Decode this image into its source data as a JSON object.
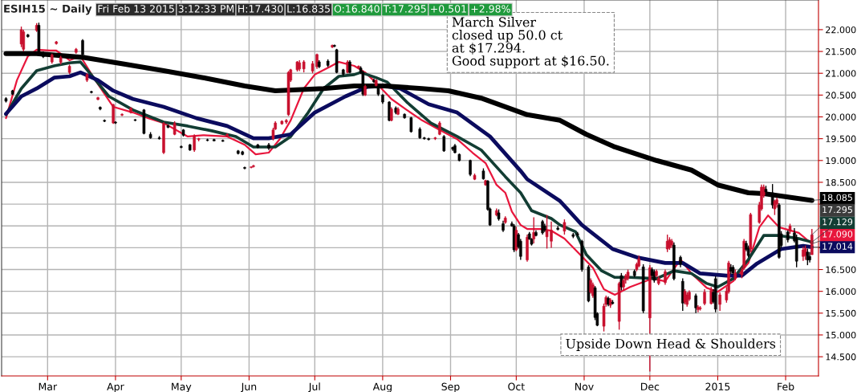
{
  "chart_data": {
    "type": "candlestick",
    "title": "ESIH15 ~ Daily",
    "x": [
      "2014-02-10",
      "2014-02-13",
      "2014-02-17",
      "2014-02-18",
      "2014-02-20",
      "2014-02-24",
      "2014-02-25",
      "2014-02-27",
      "2014-03-03",
      "2014-03-05",
      "2014-03-07",
      "2014-03-11",
      "2014-03-14",
      "2014-03-17",
      "2014-03-19",
      "2014-03-21",
      "2014-03-24",
      "2014-03-25",
      "2014-03-27",
      "2014-03-31",
      "2014-04-01",
      "2014-04-04",
      "2014-04-08",
      "2014-04-10",
      "2014-04-14",
      "2014-04-17",
      "2014-04-21",
      "2014-04-23",
      "2014-04-25",
      "2014-04-28",
      "2014-05-01",
      "2014-05-02",
      "2014-05-05",
      "2014-05-07",
      "2014-05-09",
      "2014-05-13",
      "2014-05-16",
      "2014-05-20",
      "2014-05-22",
      "2014-05-27",
      "2014-05-29",
      "2014-05-30",
      "2014-06-02",
      "2014-06-03",
      "2014-06-05",
      "2014-06-10",
      "2014-06-12",
      "2014-06-13",
      "2014-06-16",
      "2014-06-18",
      "2014-06-19",
      "2014-06-20",
      "2014-06-23",
      "2014-06-24",
      "2014-06-26",
      "2014-06-30",
      "2014-07-02",
      "2014-07-03",
      "2014-07-07",
      "2014-07-09",
      "2014-07-10",
      "2014-07-11",
      "2014-07-14",
      "2014-07-16",
      "2014-07-17",
      "2014-07-21",
      "2014-07-22",
      "2014-07-23",
      "2014-07-24",
      "2014-07-28",
      "2014-07-29",
      "2014-07-30",
      "2014-08-01",
      "2014-08-04",
      "2014-08-05",
      "2014-08-07",
      "2014-08-08",
      "2014-08-11",
      "2014-08-14",
      "2014-08-18",
      "2014-08-20",
      "2014-08-22",
      "2014-08-25",
      "2014-08-27",
      "2014-08-29",
      "2014-09-02",
      "2014-09-03",
      "2014-09-05",
      "2014-09-10",
      "2014-09-12",
      "2014-09-16",
      "2014-09-17",
      "2014-09-18",
      "2014-09-19",
      "2014-09-22",
      "2014-09-23",
      "2014-09-25",
      "2014-09-26",
      "2014-09-29",
      "2014-09-30",
      "2014-10-01",
      "2014-10-02",
      "2014-10-03",
      "2014-10-06",
      "2014-10-07",
      "2014-10-08",
      "2014-10-09",
      "2014-10-10",
      "2014-10-13",
      "2014-10-14",
      "2014-10-15",
      "2014-10-17",
      "2014-10-20",
      "2014-10-23",
      "2014-10-27",
      "2014-10-29",
      "2014-10-31",
      "2014-11-03",
      "2014-11-04",
      "2014-11-05",
      "2014-11-06",
      "2014-11-07",
      "2014-11-10",
      "2014-11-11",
      "2014-11-12",
      "2014-11-13",
      "2014-11-14",
      "2014-11-17",
      "2014-11-18",
      "2014-11-19",
      "2014-11-20",
      "2014-11-21",
      "2014-11-24",
      "2014-11-25",
      "2014-11-26",
      "2014-11-28",
      "2014-12-01",
      "2014-12-02",
      "2014-12-03",
      "2014-12-04",
      "2014-12-05",
      "2014-12-08",
      "2014-12-09",
      "2014-12-10",
      "2014-12-11",
      "2014-12-12",
      "2014-12-15",
      "2014-12-16",
      "2014-12-17",
      "2014-12-18",
      "2014-12-19",
      "2014-12-22",
      "2014-12-23",
      "2014-12-24",
      "2014-12-26",
      "2014-12-29",
      "2014-12-30",
      "2014-12-31",
      "2015-01-02",
      "2015-01-05",
      "2015-01-06",
      "2015-01-07",
      "2015-01-08",
      "2015-01-09",
      "2015-01-12",
      "2015-01-13",
      "2015-01-14",
      "2015-01-15",
      "2015-01-16",
      "2015-01-20",
      "2015-01-21",
      "2015-01-22",
      "2015-01-23",
      "2015-01-26",
      "2015-01-27",
      "2015-01-28",
      "2015-01-29",
      "2015-01-30",
      "2015-02-02",
      "2015-02-03",
      "2015-02-05",
      "2015-02-06",
      "2015-02-09",
      "2015-02-10",
      "2015-02-11",
      "2015-02-12",
      "2015-02-13"
    ],
    "ohlc": [
      [
        20.42,
        20.45,
        20.33,
        20.36
      ],
      [
        20.6,
        20.62,
        20.5,
        20.52
      ],
      [
        21.67,
        22.07,
        21.6,
        22.0
      ],
      [
        21.55,
        22.0,
        21.5,
        21.95
      ],
      [
        21.88,
        21.9,
        21.82,
        21.84
      ],
      [
        21.98,
        22.15,
        21.95,
        22.1
      ],
      [
        22.1,
        22.16,
        21.4,
        21.45
      ],
      [
        21.45,
        21.5,
        21.35,
        21.38
      ],
      [
        21.26,
        21.45,
        21.22,
        21.42
      ],
      [
        21.68,
        21.74,
        21.66,
        21.72
      ],
      [
        21.25,
        21.4,
        21.2,
        21.36
      ],
      [
        21.02,
        21.2,
        20.98,
        21.16
      ],
      [
        21.48,
        21.58,
        21.45,
        21.55
      ],
      [
        21.75,
        21.78,
        21.4,
        21.43
      ],
      [
        20.84,
        21.0,
        20.8,
        20.97
      ],
      [
        20.58,
        20.6,
        20.54,
        20.56
      ],
      [
        20.4,
        20.46,
        20.38,
        20.44
      ],
      [
        20.22,
        20.24,
        20.15,
        20.18
      ],
      [
        19.92,
        19.94,
        19.88,
        19.9
      ],
      [
        19.86,
        20.3,
        19.84,
        20.28
      ],
      [
        19.88,
        19.9,
        19.84,
        19.86
      ],
      [
        20.04,
        20.08,
        20.02,
        20.06
      ],
      [
        20.1,
        20.22,
        20.08,
        20.2
      ],
      [
        19.93,
        19.95,
        19.9,
        19.92
      ],
      [
        20.16,
        20.18,
        19.6,
        19.62
      ],
      [
        19.6,
        19.65,
        19.5,
        19.52
      ],
      [
        19.52,
        19.56,
        19.48,
        19.5
      ],
      [
        19.18,
        19.88,
        19.15,
        19.85
      ],
      [
        19.8,
        19.82,
        19.74,
        19.76
      ],
      [
        19.6,
        19.9,
        19.58,
        19.85
      ],
      [
        19.32,
        19.34,
        19.28,
        19.3
      ],
      [
        19.7,
        19.72,
        19.55,
        19.58
      ],
      [
        19.36,
        19.38,
        19.22,
        19.24
      ],
      [
        19.24,
        19.6,
        19.2,
        19.56
      ],
      [
        19.48,
        19.52,
        19.44,
        19.5
      ],
      [
        19.47,
        19.5,
        19.44,
        19.46
      ],
      [
        19.48,
        19.5,
        19.44,
        19.45
      ],
      [
        19.46,
        19.48,
        19.43,
        19.44
      ],
      [
        19.55,
        19.62,
        19.53,
        19.6
      ],
      [
        19.22,
        19.24,
        19.14,
        19.16
      ],
      [
        19.2,
        19.22,
        19.12,
        19.14
      ],
      [
        18.84,
        18.86,
        18.8,
        18.82
      ],
      [
        18.84,
        18.86,
        18.82,
        18.85
      ],
      [
        18.86,
        18.9,
        18.84,
        18.88
      ],
      [
        19.36,
        19.38,
        19.28,
        19.3
      ],
      [
        19.36,
        19.4,
        19.24,
        19.28
      ],
      [
        19.5,
        19.75,
        19.46,
        19.7
      ],
      [
        19.72,
        19.9,
        19.7,
        19.86
      ],
      [
        19.84,
        19.92,
        19.82,
        19.9
      ],
      [
        19.88,
        19.95,
        19.84,
        19.92
      ],
      [
        20.05,
        21.05,
        20.02,
        21.02
      ],
      [
        20.84,
        21.1,
        20.8,
        21.08
      ],
      [
        21.08,
        21.28,
        21.04,
        21.26
      ],
      [
        21.1,
        21.3,
        21.05,
        21.24
      ],
      [
        21.1,
        21.3,
        21.02,
        21.26
      ],
      [
        21.05,
        21.28,
        21.0,
        21.22
      ],
      [
        21.15,
        21.45,
        21.1,
        21.43
      ],
      [
        21.26,
        21.3,
        21.12,
        21.15
      ],
      [
        21.28,
        21.32,
        21.14,
        21.18
      ],
      [
        21.6,
        21.66,
        21.58,
        21.64
      ],
      [
        21.64,
        21.66,
        21.6,
        21.62
      ],
      [
        21.54,
        21.56,
        21.0,
        21.02
      ],
      [
        21.08,
        21.1,
        20.94,
        20.98
      ],
      [
        21.02,
        21.3,
        21.0,
        21.26
      ],
      [
        21.26,
        21.3,
        21.0,
        21.02
      ],
      [
        21.12,
        21.18,
        21.1,
        21.16
      ],
      [
        21.12,
        21.16,
        20.98,
        21.02
      ],
      [
        21.02,
        21.06,
        20.48,
        20.52
      ],
      [
        20.5,
        20.74,
        20.48,
        20.7
      ],
      [
        20.84,
        20.88,
        20.78,
        20.8
      ],
      [
        20.72,
        20.86,
        20.7,
        20.84
      ],
      [
        20.7,
        20.74,
        20.48,
        20.52
      ],
      [
        20.5,
        20.52,
        20.3,
        20.34
      ],
      [
        20.34,
        20.36,
        19.9,
        19.92
      ],
      [
        19.92,
        20.22,
        19.9,
        20.18
      ],
      [
        20.2,
        20.24,
        20.06,
        20.1
      ],
      [
        20.06,
        20.22,
        20.04,
        20.18
      ],
      [
        20.06,
        20.08,
        19.96,
        19.98
      ],
      [
        19.98,
        20.0,
        19.64,
        19.66
      ],
      [
        19.72,
        19.76,
        19.5,
        19.52
      ],
      [
        19.52,
        19.54,
        19.48,
        19.5
      ],
      [
        19.5,
        19.52,
        19.46,
        19.48
      ],
      [
        19.5,
        19.54,
        19.47,
        19.52
      ],
      [
        19.6,
        19.9,
        19.58,
        19.86
      ],
      [
        19.55,
        19.58,
        19.2,
        19.22
      ],
      [
        19.3,
        19.32,
        19.22,
        19.26
      ],
      [
        19.34,
        19.38,
        19.16,
        19.18
      ],
      [
        19.14,
        19.16,
        18.98,
        19.0
      ],
      [
        19.0,
        19.02,
        18.64,
        18.68
      ],
      [
        18.57,
        18.7,
        18.55,
        18.66
      ],
      [
        18.76,
        18.82,
        18.56,
        18.58
      ],
      [
        18.44,
        18.56,
        18.42,
        18.54
      ],
      [
        18.53,
        18.55,
        17.85,
        17.88
      ],
      [
        17.89,
        17.92,
        17.5,
        17.52
      ],
      [
        17.75,
        17.9,
        17.72,
        17.85
      ],
      [
        17.8,
        17.88,
        17.62,
        17.66
      ],
      [
        17.55,
        17.62,
        17.36,
        17.4
      ],
      [
        17.58,
        17.72,
        17.55,
        17.68
      ],
      [
        17.55,
        17.6,
        17.48,
        17.5
      ],
      [
        17.5,
        17.54,
        16.9,
        16.95
      ],
      [
        16.95,
        17.48,
        16.92,
        17.4
      ],
      [
        17.3,
        17.34,
        16.98,
        17.02
      ],
      [
        17.15,
        17.2,
        16.72,
        16.8
      ],
      [
        16.72,
        17.3,
        16.68,
        17.24
      ],
      [
        17.32,
        17.36,
        17.18,
        17.2
      ],
      [
        17.2,
        17.22,
        17.05,
        17.08
      ],
      [
        17.2,
        17.7,
        17.1,
        17.35
      ],
      [
        17.35,
        17.4,
        17.26,
        17.28
      ],
      [
        17.6,
        17.64,
        17.3,
        17.34
      ],
      [
        17.5,
        17.55,
        17.36,
        17.4
      ],
      [
        17.25,
        17.75,
        16.98,
        17.4
      ],
      [
        17.15,
        17.6,
        17.0,
        17.4
      ],
      [
        17.45,
        17.5,
        17.4,
        17.42
      ],
      [
        17.38,
        17.65,
        17.3,
        17.58
      ],
      [
        17.3,
        17.34,
        17.22,
        17.26
      ],
      [
        17.32,
        17.36,
        17.26,
        17.3
      ],
      [
        17.15,
        17.18,
        16.45,
        16.5
      ],
      [
        16.56,
        16.6,
        15.75,
        15.78
      ],
      [
        15.98,
        16.3,
        15.95,
        16.25
      ],
      [
        15.9,
        16.2,
        15.85,
        16.15
      ],
      [
        16.08,
        16.12,
        15.34,
        15.4
      ],
      [
        15.49,
        15.52,
        15.2,
        15.22
      ],
      [
        15.2,
        15.72,
        15.08,
        15.66
      ],
      [
        15.7,
        15.9,
        15.65,
        15.86
      ],
      [
        15.84,
        15.88,
        15.66,
        15.7
      ],
      [
        15.68,
        15.84,
        15.62,
        15.8
      ],
      [
        15.75,
        15.8,
        15.7,
        15.72
      ],
      [
        15.31,
        16.22,
        15.12,
        16.18
      ],
      [
        16.36,
        16.42,
        16.02,
        16.1
      ],
      [
        16.1,
        16.3,
        16.02,
        16.25
      ],
      [
        16.26,
        16.4,
        16.18,
        16.36
      ],
      [
        16.3,
        16.5,
        16.25,
        16.44
      ],
      [
        16.46,
        16.5,
        16.32,
        16.36
      ],
      [
        16.5,
        16.66,
        16.46,
        16.62
      ],
      [
        16.58,
        16.82,
        16.55,
        16.75
      ],
      [
        16.56,
        16.62,
        15.5,
        15.55
      ],
      [
        15.39,
        16.6,
        14.16,
        16.54
      ],
      [
        16.5,
        16.55,
        16.3,
        16.36
      ],
      [
        16.45,
        16.5,
        16.2,
        16.25
      ],
      [
        16.36,
        16.5,
        16.32,
        16.46
      ],
      [
        16.18,
        16.35,
        16.14,
        16.3
      ],
      [
        16.2,
        16.5,
        16.15,
        16.45
      ],
      [
        16.97,
        17.3,
        16.9,
        17.15
      ],
      [
        17.0,
        17.24,
        16.95,
        17.18
      ],
      [
        17.06,
        17.2,
        17.0,
        17.15
      ],
      [
        17.06,
        17.12,
        16.25,
        16.29
      ],
      [
        16.78,
        16.82,
        16.55,
        16.62
      ],
      [
        16.23,
        16.3,
        15.55,
        15.73
      ],
      [
        15.75,
        16.05,
        15.7,
        16.0
      ],
      [
        15.7,
        15.98,
        15.65,
        15.92
      ],
      [
        15.82,
        16.02,
        15.78,
        15.98
      ],
      [
        15.9,
        15.95,
        15.5,
        15.62
      ],
      [
        15.58,
        15.68,
        15.52,
        15.64
      ],
      [
        15.6,
        15.66,
        15.56,
        15.62
      ],
      [
        15.72,
        16.05,
        15.68,
        15.98
      ],
      [
        15.72,
        16.1,
        15.7,
        16.02
      ],
      [
        15.98,
        16.05,
        15.72,
        15.76
      ],
      [
        16.29,
        16.35,
        15.52,
        15.59
      ],
      [
        15.7,
        15.98,
        15.55,
        15.92
      ],
      [
        15.8,
        16.1,
        15.74,
        16.0
      ],
      [
        15.99,
        16.7,
        15.95,
        16.65
      ],
      [
        16.55,
        16.62,
        16.4,
        16.46
      ],
      [
        16.55,
        16.6,
        16.38,
        16.42
      ],
      [
        16.3,
        16.5,
        16.25,
        16.42
      ],
      [
        16.38,
        16.55,
        16.3,
        16.48
      ],
      [
        16.54,
        17.2,
        16.5,
        17.15
      ],
      [
        17.1,
        17.16,
        16.92,
        16.96
      ],
      [
        17.0,
        17.05,
        16.78,
        16.82
      ],
      [
        16.97,
        17.8,
        16.9,
        17.76
      ],
      [
        17.58,
        18.05,
        17.55,
        17.98
      ],
      [
        17.89,
        18.45,
        17.85,
        18.39
      ],
      [
        18.2,
        18.45,
        18.15,
        18.39
      ],
      [
        18.34,
        18.42,
        18.2,
        18.28
      ],
      [
        18.26,
        18.46,
        17.9,
        17.98
      ],
      [
        17.89,
        18.1,
        17.75,
        18.07
      ],
      [
        18.0,
        18.15,
        17.92,
        18.1
      ],
      [
        17.98,
        18.02,
        16.75,
        16.78
      ],
      [
        17.32,
        17.38,
        17.0,
        17.05
      ],
      [
        17.36,
        17.4,
        17.12,
        17.18
      ],
      [
        17.38,
        17.55,
        17.32,
        17.5
      ],
      [
        17.34,
        17.45,
        17.12,
        17.16
      ],
      [
        17.21,
        17.3,
        16.55,
        16.69
      ],
      [
        16.8,
        17.02,
        16.7,
        16.95
      ],
      [
        16.82,
        17.05,
        16.72,
        16.98
      ],
      [
        16.9,
        16.98,
        16.6,
        16.72
      ],
      [
        16.8,
        16.9,
        16.66,
        16.72
      ],
      [
        16.84,
        17.43,
        16.835,
        17.295
      ]
    ],
    "colors": [
      "#000000",
      "#000000",
      "#c8102e",
      "#c8102e",
      "#000000",
      "#c8102e",
      "#000000",
      "#000000",
      "#c8102e",
      "#c8102e",
      "#c8102e",
      "#c8102e",
      "#c8102e",
      "#000000",
      "#c8102e",
      "#000000",
      "#c8102e",
      "#000000",
      "#000000",
      "#c8102e",
      "#000000",
      "#c8102e",
      "#c8102e",
      "#000000",
      "#000000",
      "#000000",
      "#000000",
      "#c8102e",
      "#000000",
      "#c8102e",
      "#000000",
      "#000000",
      "#000000",
      "#c8102e",
      "#c8102e",
      "#000000",
      "#000000",
      "#000000",
      "#c8102e",
      "#000000",
      "#000000",
      "#000000",
      "#c8102e",
      "#c8102e",
      "#000000",
      "#000000",
      "#c8102e",
      "#c8102e",
      "#c8102e",
      "#c8102e",
      "#c8102e",
      "#c8102e",
      "#c8102e",
      "#c8102e",
      "#c8102e",
      "#c8102e",
      "#c8102e",
      "#000000",
      "#000000",
      "#c8102e",
      "#000000",
      "#000000",
      "#000000",
      "#c8102e",
      "#000000",
      "#c8102e",
      "#000000",
      "#000000",
      "#c8102e",
      "#000000",
      "#c8102e",
      "#000000",
      "#000000",
      "#000000",
      "#c8102e",
      "#000000",
      "#c8102e",
      "#000000",
      "#000000",
      "#000000",
      "#000000",
      "#000000",
      "#c8102e",
      "#c8102e",
      "#000000",
      "#000000",
      "#000000",
      "#000000",
      "#000000",
      "#c8102e",
      "#000000",
      "#c8102e",
      "#000000",
      "#000000",
      "#c8102e",
      "#000000",
      "#000000",
      "#c8102e",
      "#000000",
      "#000000",
      "#c8102e",
      "#000000",
      "#000000",
      "#c8102e",
      "#000000",
      "#000000",
      "#c8102e",
      "#000000",
      "#000000",
      "#000000",
      "#c8102e",
      "#c8102e",
      "#000000",
      "#c8102e",
      "#000000",
      "#000000",
      "#000000",
      "#000000",
      "#c8102e",
      "#c8102e",
      "#000000",
      "#000000",
      "#c8102e",
      "#c8102e",
      "#000000",
      "#c8102e",
      "#000000",
      "#c8102e",
      "#000000",
      "#c8102e",
      "#c8102e",
      "#c8102e",
      "#000000",
      "#c8102e",
      "#c8102e",
      "#000000",
      "#c8102e",
      "#000000",
      "#000000",
      "#c8102e",
      "#c8102e",
      "#c8102e",
      "#c8102e",
      "#c8102e",
      "#c8102e",
      "#000000",
      "#000000",
      "#000000",
      "#c8102e",
      "#c8102e",
      "#c8102e",
      "#000000",
      "#c8102e",
      "#c8102e",
      "#c8102e",
      "#c8102e",
      "#000000",
      "#000000",
      "#c8102e",
      "#c8102e",
      "#c8102e",
      "#000000",
      "#000000",
      "#c8102e",
      "#c8102e",
      "#c8102e",
      "#000000",
      "#000000",
      "#c8102e",
      "#c8102e",
      "#c8102e",
      "#c8102e",
      "#000000",
      "#000000",
      "#c8102e",
      "#c8102e",
      "#000000",
      "#000000",
      "#000000",
      "#c8102e",
      "#000000",
      "#000000",
      "#c8102e",
      "#c8102e",
      "#000000",
      "#000000",
      "#c8102e"
    ],
    "series": [
      {
        "type": "line",
        "color": "#e8163c",
        "x": [
          "2014-02-10",
          "2014-02-15",
          "2014-02-20",
          "2014-02-24",
          "2014-03-02",
          "2014-03-05",
          "2014-03-11",
          "2014-03-16",
          "2014-03-22",
          "2014-03-31",
          "2014-04-09",
          "2014-04-16",
          "2014-04-23",
          "2014-05-04",
          "2014-05-11",
          "2014-05-22",
          "2014-05-30",
          "2014-06-04",
          "2014-06-10",
          "2014-06-15",
          "2014-06-20",
          "2014-06-26",
          "2014-07-01",
          "2014-07-08",
          "2014-07-12",
          "2014-07-19",
          "2014-07-24",
          "2014-07-29",
          "2014-08-05",
          "2014-08-12",
          "2014-08-19",
          "2014-08-26",
          "2014-09-04",
          "2014-09-11",
          "2014-09-17",
          "2014-09-22",
          "2014-09-26",
          "2014-09-29",
          "2014-10-03",
          "2014-10-06",
          "2014-10-12",
          "2014-10-17",
          "2014-10-23",
          "2014-10-29",
          "2014-11-05",
          "2014-11-10",
          "2014-11-15",
          "2014-11-22",
          "2014-12-02",
          "2014-12-08",
          "2014-12-15",
          "2014-12-20",
          "2014-12-27",
          "2015-01-01",
          "2015-01-08",
          "2015-01-15",
          "2015-01-20",
          "2015-01-24",
          "2015-01-29",
          "2015-02-07",
          "2015-02-13"
        ],
        "values": [
          19.97,
          20.84,
          21.39,
          21.54,
          21.52,
          21.52,
          21.3,
          21.39,
          20.9,
          20.23,
          20.1,
          19.97,
          19.86,
          19.55,
          19.58,
          19.55,
          19.36,
          19.14,
          19.18,
          19.49,
          19.92,
          20.65,
          20.97,
          21.15,
          21.26,
          21.17,
          21.02,
          20.78,
          20.41,
          20.16,
          19.92,
          19.73,
          19.49,
          19.18,
          18.94,
          18.44,
          18.26,
          17.83,
          17.52,
          17.43,
          17.43,
          17.39,
          17.21,
          16.9,
          16.54,
          16.05,
          15.92,
          16.1,
          16.29,
          16.23,
          16.73,
          16.41,
          16.08,
          15.99,
          16.23,
          16.65,
          17.47,
          17.74,
          17.47,
          17.34,
          17.09
        ],
        "value_labels": [
          null,
          null,
          null,
          null,
          null,
          null,
          null,
          null,
          null,
          null,
          null,
          null,
          null,
          null,
          null,
          null,
          null,
          null,
          null,
          null,
          null,
          null,
          null,
          null,
          null,
          null,
          null,
          null,
          null,
          null,
          null,
          null,
          null,
          null,
          null,
          null,
          null,
          null,
          null,
          null,
          null,
          null,
          null,
          null,
          null,
          null,
          null,
          null,
          null,
          null,
          null,
          null,
          null,
          null,
          null,
          null,
          null,
          null,
          null,
          null,
          "17.090"
        ]
      },
      {
        "type": "line",
        "color": "#123d33",
        "x": [
          "2014-02-10",
          "2014-02-17",
          "2014-02-24",
          "2014-03-04",
          "2014-03-11",
          "2014-03-16",
          "2014-03-22",
          "2014-03-29",
          "2014-04-09",
          "2014-04-23",
          "2014-05-04",
          "2014-05-15",
          "2014-05-26",
          "2014-06-03",
          "2014-06-10",
          "2014-06-13",
          "2014-06-20",
          "2014-06-28",
          "2014-07-05",
          "2014-07-12",
          "2014-07-19",
          "2014-07-22",
          "2014-07-29",
          "2014-08-03",
          "2014-08-12",
          "2014-08-23",
          "2014-09-04",
          "2014-09-15",
          "2014-09-26",
          "2014-10-03",
          "2014-10-08",
          "2014-10-17",
          "2014-10-21",
          "2014-10-28",
          "2014-11-02",
          "2014-11-09",
          "2014-11-15",
          "2014-11-22",
          "2014-12-04",
          "2014-12-12",
          "2014-12-20",
          "2014-12-27",
          "2015-01-01",
          "2015-01-08",
          "2015-01-15",
          "2015-01-22",
          "2015-01-29",
          "2015-02-07",
          "2015-02-13"
        ],
        "values": [
          20.05,
          20.65,
          21.06,
          21.17,
          21.24,
          21.26,
          20.9,
          20.47,
          20.16,
          19.88,
          19.79,
          19.68,
          19.55,
          19.31,
          19.31,
          19.31,
          19.55,
          20.1,
          20.65,
          20.93,
          20.97,
          21.02,
          20.9,
          20.8,
          20.34,
          19.86,
          19.55,
          19.24,
          18.63,
          18.26,
          17.85,
          17.67,
          17.52,
          17.37,
          16.84,
          16.47,
          16.32,
          16.32,
          16.29,
          16.47,
          16.41,
          16.18,
          16.1,
          16.29,
          16.73,
          17.28,
          17.28,
          17.21,
          17.129
        ],
        "value_labels": [
          null,
          null,
          null,
          null,
          null,
          null,
          null,
          null,
          null,
          null,
          null,
          null,
          null,
          null,
          null,
          null,
          null,
          null,
          null,
          null,
          null,
          null,
          null,
          null,
          null,
          null,
          null,
          null,
          null,
          null,
          null,
          null,
          null,
          null,
          null,
          null,
          null,
          null,
          null,
          null,
          null,
          null,
          null,
          null,
          null,
          null,
          null,
          null,
          "17.129"
        ]
      },
      {
        "type": "line",
        "color": "#0b0b5e",
        "x": [
          "2014-02-10",
          "2014-02-17",
          "2014-02-24",
          "2014-03-04",
          "2014-03-11",
          "2014-03-16",
          "2014-03-24",
          "2014-03-31",
          "2014-04-09",
          "2014-04-23",
          "2014-05-08",
          "2014-05-22",
          "2014-06-03",
          "2014-06-10",
          "2014-06-20",
          "2014-07-01",
          "2014-07-15",
          "2014-07-25",
          "2014-08-02",
          "2014-08-09",
          "2014-08-22",
          "2014-09-04",
          "2014-09-19",
          "2014-10-03",
          "2014-10-06",
          "2014-10-21",
          "2014-10-31",
          "2014-11-14",
          "2014-11-25",
          "2014-12-08",
          "2014-12-16",
          "2014-12-24",
          "2015-01-05",
          "2015-01-12",
          "2015-01-19",
          "2015-01-30",
          "2015-02-09",
          "2015-02-13"
        ],
        "values": [
          20.07,
          20.47,
          20.65,
          20.9,
          20.93,
          21.02,
          20.84,
          20.6,
          20.41,
          20.23,
          19.97,
          19.79,
          19.51,
          19.51,
          19.6,
          20.1,
          20.47,
          20.69,
          20.71,
          20.65,
          20.29,
          20.1,
          19.55,
          18.76,
          18.57,
          18.07,
          17.52,
          16.97,
          16.78,
          16.65,
          16.65,
          16.41,
          16.36,
          16.36,
          16.64,
          16.97,
          17.04,
          17.014
        ],
        "value_labels": [
          null,
          null,
          null,
          null,
          null,
          null,
          null,
          null,
          null,
          null,
          null,
          null,
          null,
          null,
          null,
          null,
          null,
          null,
          null,
          null,
          null,
          null,
          null,
          null,
          null,
          null,
          null,
          null,
          null,
          null,
          null,
          null,
          null,
          null,
          null,
          null,
          null,
          "17.014"
        ]
      },
      {
        "type": "line",
        "color": "#000000",
        "x": [
          "2014-02-10",
          "2014-02-24",
          "2014-03-18",
          "2014-04-05",
          "2014-04-23",
          "2014-05-11",
          "2014-05-30",
          "2014-06-13",
          "2014-07-05",
          "2014-07-19",
          "2014-08-02",
          "2014-08-19",
          "2014-08-31",
          "2014-09-15",
          "2014-10-06",
          "2014-10-21",
          "2014-11-02",
          "2014-11-15",
          "2014-12-04",
          "2014-12-20",
          "2015-01-01",
          "2015-01-15",
          "2015-01-22",
          "2015-02-13"
        ],
        "values": [
          21.45,
          21.45,
          21.36,
          21.21,
          21.06,
          20.9,
          20.71,
          20.6,
          20.65,
          20.71,
          20.71,
          20.65,
          20.6,
          20.43,
          20.05,
          19.92,
          19.6,
          19.31,
          19.0,
          18.78,
          18.44,
          18.26,
          18.24,
          18.085
        ],
        "value_labels": [
          null,
          null,
          null,
          null,
          null,
          null,
          null,
          null,
          null,
          null,
          null,
          null,
          null,
          null,
          null,
          null,
          null,
          null,
          null,
          null,
          null,
          null,
          null,
          "18.085"
        ]
      }
    ],
    "xlim": [
      "2014-02-08",
      "2015-02-16"
    ],
    "xticks": [
      {
        "value": "2014-03-01",
        "label": "Mar"
      },
      {
        "value": "2014-04-01",
        "label": "Apr"
      },
      {
        "value": "2014-05-01",
        "label": "May"
      },
      {
        "value": "2014-06-01",
        "label": "Jun"
      },
      {
        "value": "2014-07-01",
        "label": "Jul"
      },
      {
        "value": "2014-08-01",
        "label": "Aug"
      },
      {
        "value": "2014-09-01",
        "label": "Sep"
      },
      {
        "value": "2014-10-01",
        "label": "Oct"
      },
      {
        "value": "2014-11-01",
        "label": "Nov"
      },
      {
        "value": "2014-12-01",
        "label": "Dec"
      },
      {
        "value": "2015-01-01",
        "label": "2015"
      },
      {
        "value": "2015-02-01",
        "label": "Feb"
      }
    ],
    "ylim": [
      14.06,
      22.68
    ],
    "yticks": [
      {
        "value": 14.5,
        "label": "14.500"
      },
      {
        "value": 15.0,
        "label": "15.000"
      },
      {
        "value": 15.5,
        "label": "15.500"
      },
      {
        "value": 16.0,
        "label": "16.000"
      },
      {
        "value": 16.5,
        "label": "16.500"
      },
      {
        "value": 17.0,
        "label": null
      },
      {
        "value": 17.5,
        "label": null
      },
      {
        "value": 18.0,
        "label": null
      },
      {
        "value": 18.5,
        "label": "18.500"
      },
      {
        "value": 19.0,
        "label": "19.000"
      },
      {
        "value": 19.5,
        "label": "19.500"
      },
      {
        "value": 20.0,
        "label": "20.000"
      },
      {
        "value": 20.5,
        "label": "20.500"
      },
      {
        "value": 21.0,
        "label": "21.000"
      },
      {
        "value": 21.5,
        "label": "21.500"
      },
      {
        "value": 22.0,
        "label": "22.000"
      }
    ],
    "grid": true,
    "annotations": [
      "Fri Feb 13 2015",
      "3:12:33 PM",
      "H:17.430",
      "L:16.835",
      "O:16.840",
      "T:17.295",
      "+0.501",
      "+2.98%",
      {
        "text": "17.295",
        "x": "2015-02-13",
        "y": 17.295
      },
      "March Silver\nclosed up 50.0 ct\nat $17.294.\nGood support at $16.50.",
      "Upside Down Head & Shoulders"
    ]
  }
}
